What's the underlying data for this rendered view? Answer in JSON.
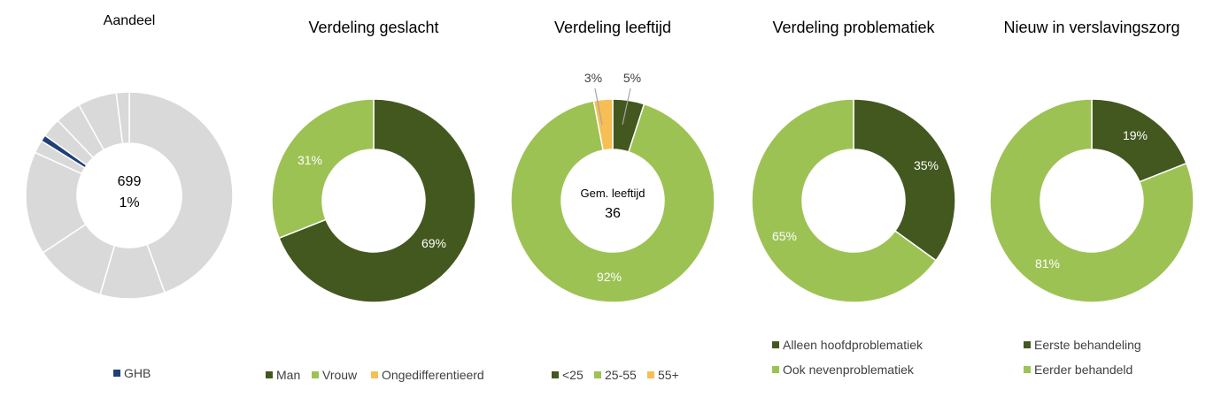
{
  "chart_data": [
    {
      "type": "pie",
      "title": "Aandeel",
      "center_lines": [
        "699",
        "1%"
      ],
      "highlight_color": "#1F3F7A",
      "background_color": "#D9D9D9",
      "slices": [
        {
          "value": 44,
          "color": "#D9D9D9"
        },
        {
          "value": 10,
          "color": "#D9D9D9"
        },
        {
          "value": 11,
          "color": "#D9D9D9"
        },
        {
          "value": 16,
          "color": "#D9D9D9"
        },
        {
          "value": 2,
          "color": "#D9D9D9"
        },
        {
          "value": 1,
          "color": "#1F3F7A",
          "highlight": true
        },
        {
          "value": 3,
          "color": "#D9D9D9"
        },
        {
          "value": 4,
          "color": "#D9D9D9"
        },
        {
          "value": 6,
          "color": "#D9D9D9"
        },
        {
          "value": 2,
          "color": "#D9D9D9"
        }
      ],
      "legend": [
        {
          "label": "GHB",
          "color": "#1F3F7A"
        }
      ]
    },
    {
      "type": "pie",
      "title": "Verdeling geslacht",
      "slices": [
        {
          "label": "Man",
          "value": 69,
          "color": "#43581F",
          "data_label": "69%"
        },
        {
          "label": "Vrouw",
          "value": 31,
          "color": "#9DC254",
          "data_label": "31%"
        },
        {
          "label": "Ongedifferentieerd",
          "value": 0,
          "color": "#F6BE54"
        }
      ],
      "legend": [
        {
          "label": "Man",
          "color": "#43581F"
        },
        {
          "label": "Vrouw",
          "color": "#9DC254"
        },
        {
          "label": "Ongedifferentieerd",
          "color": "#F6BE54"
        }
      ]
    },
    {
      "type": "pie",
      "title": "Verdeling leeftijd",
      "center_lines": [
        "Gem. leeftijd",
        "36"
      ],
      "slices": [
        {
          "label": "<25",
          "value": 5,
          "color": "#43581F",
          "data_label": "5%"
        },
        {
          "label": "25-55",
          "value": 92,
          "color": "#9DC254",
          "data_label": "92%"
        },
        {
          "label": "55+",
          "value": 3,
          "color": "#F6BE54",
          "data_label": "3%"
        }
      ],
      "legend": [
        {
          "label": "<25",
          "color": "#43581F"
        },
        {
          "label": "25-55",
          "color": "#9DC254"
        },
        {
          "label": "55+",
          "color": "#F6BE54"
        }
      ]
    },
    {
      "type": "pie",
      "title": "Verdeling problematiek",
      "slices": [
        {
          "label": "Alleen hoofdproblematiek",
          "value": 35,
          "color": "#43581F",
          "data_label": "35%"
        },
        {
          "label": "Ook nevenproblematiek",
          "value": 65,
          "color": "#9DC254",
          "data_label": "65%"
        }
      ],
      "legend": [
        {
          "label": "Alleen hoofdproblematiek",
          "color": "#43581F"
        },
        {
          "label": "Ook nevenproblematiek",
          "color": "#9DC254"
        }
      ]
    },
    {
      "type": "pie",
      "title": "Nieuw in verslavingszorg",
      "slices": [
        {
          "label": "Eerste behandeling",
          "value": 19,
          "color": "#43581F",
          "data_label": "19%"
        },
        {
          "label": "Eerder behandeld",
          "value": 81,
          "color": "#9DC254",
          "data_label": "81%"
        }
      ],
      "legend": [
        {
          "label": "Eerste behandeling",
          "color": "#43581F"
        },
        {
          "label": "Eerder behandeld",
          "color": "#9DC254"
        }
      ]
    }
  ]
}
